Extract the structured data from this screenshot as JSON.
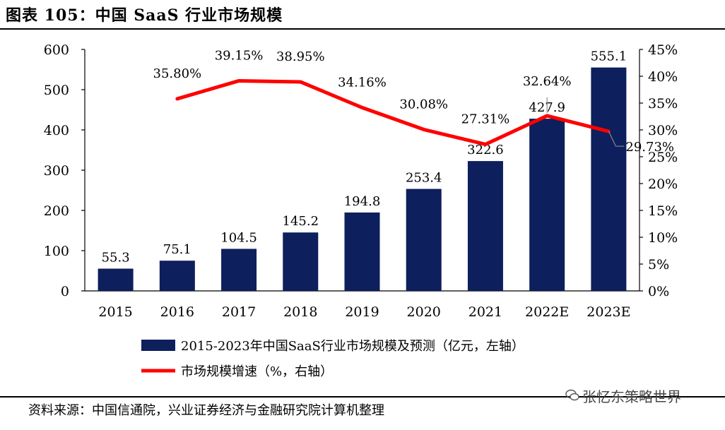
{
  "figure_title": "图表 105：中国 SaaS 行业市场规模",
  "source_text": "资料来源：中国信通院，兴业证券经济与金融研究院计算机整理",
  "watermark_text": "张忆东策略世界",
  "chart_data": {
    "type": "bar",
    "categories": [
      "2015",
      "2016",
      "2017",
      "2018",
      "2019",
      "2020",
      "2021",
      "2022E",
      "2023E"
    ],
    "series": [
      {
        "name": "2015-2023年中国SaaS行业市场规模及预测（亿元，左轴）",
        "type": "bar",
        "axis": "left",
        "color": "#0d1f5c",
        "values": [
          55.3,
          75.1,
          104.5,
          145.2,
          194.8,
          253.4,
          322.6,
          427.9,
          555.1
        ],
        "labels": [
          "55.3",
          "75.1",
          "104.5",
          "145.2",
          "194.8",
          "253.4",
          "322.6",
          "427.9",
          "555.1"
        ]
      },
      {
        "name": "市场规模增速（%，右轴）",
        "type": "line",
        "axis": "right",
        "color": "#ff0000",
        "values": [
          null,
          35.8,
          39.15,
          38.95,
          34.16,
          30.08,
          27.31,
          32.64,
          29.73
        ],
        "labels": [
          "",
          "35.80%",
          "39.15%",
          "38.95%",
          "34.16%",
          "30.08%",
          "27.31%",
          "32.64%",
          "29.73%"
        ]
      }
    ],
    "y_left": {
      "min": 0,
      "max": 600,
      "ticks": [
        0,
        100,
        200,
        300,
        400,
        500,
        600
      ],
      "tick_labels": [
        "0",
        "100",
        "200",
        "300",
        "400",
        "500",
        "600"
      ]
    },
    "y_right": {
      "min": 0,
      "max": 45,
      "ticks": [
        0,
        5,
        10,
        15,
        20,
        25,
        30,
        35,
        40,
        45
      ],
      "tick_labels": [
        "0%",
        "5%",
        "10%",
        "15%",
        "20%",
        "25%",
        "30%",
        "35%",
        "40%",
        "45%"
      ]
    },
    "legend_position": "bottom"
  }
}
